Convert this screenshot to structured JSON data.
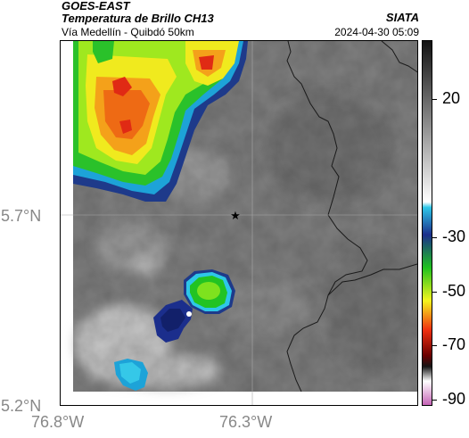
{
  "header": {
    "line1": "GOES-EAST",
    "line2": "Temperatura de Brillo CH13",
    "line3": "Vía Medellín - Quibdó 50km",
    "institution": "SIATA",
    "datetime": "2024-04-30 05:09"
  },
  "map": {
    "lat_labels": [
      "5.7°N",
      "5.2°N"
    ],
    "lon_labels": [
      "76.8°W",
      "76.3°W"
    ],
    "marker": "star-marker",
    "variable_note": "brightness temperature field, grayscale + color enhancement"
  },
  "colorbar": {
    "tick_labels": [
      "20",
      "-30",
      "-50",
      "-70",
      "-90"
    ],
    "colors": [
      "#111111",
      "#ffffff",
      "#2ec7e8",
      "#1b2e8c",
      "#1fc21f",
      "#f5f51e",
      "#f03010",
      "#6b0000",
      "#c058b0"
    ]
  }
}
